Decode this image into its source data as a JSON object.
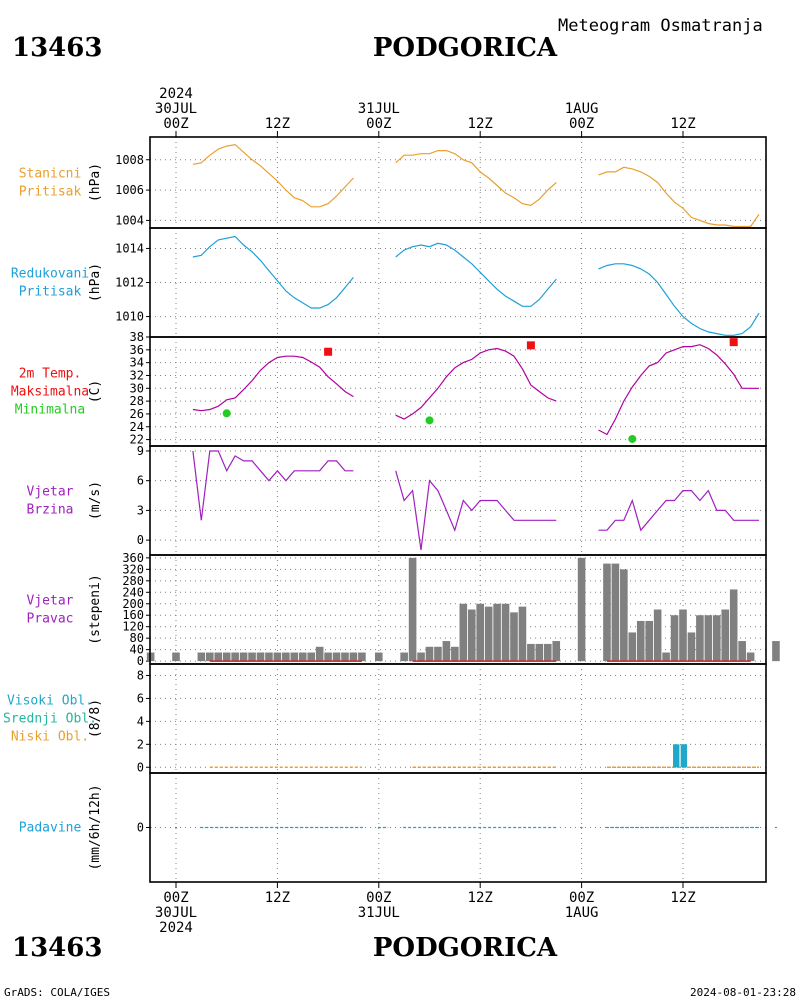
{
  "header": {
    "station_id": "13463",
    "station_name": "PODGORICA",
    "subtitle": "Meteogram Osmatranja",
    "credit": "GrADS: COLA/IGES",
    "timestamp": "2024-08-01-23:28"
  },
  "time_axis": {
    "ticks_top": [
      {
        "hour": 0,
        "lines": [
          "2024",
          "30JUL",
          "00Z"
        ]
      },
      {
        "hour": 12,
        "lines": [
          "12Z"
        ]
      },
      {
        "hour": 24,
        "lines": [
          "31JUL",
          "00Z"
        ]
      },
      {
        "hour": 36,
        "lines": [
          "12Z"
        ]
      },
      {
        "hour": 48,
        "lines": [
          "1AUG",
          "00Z"
        ]
      },
      {
        "hour": 60,
        "lines": [
          "12Z"
        ]
      }
    ],
    "ticks_bottom": [
      {
        "hour": 0,
        "lines": [
          "00Z",
          "30JUL",
          "2024"
        ]
      },
      {
        "hour": 12,
        "lines": [
          "12Z"
        ]
      },
      {
        "hour": 24,
        "lines": [
          "00Z",
          "31JUL"
        ]
      },
      {
        "hour": 36,
        "lines": [
          "12Z"
        ]
      },
      {
        "hour": 48,
        "lines": [
          "00Z",
          "1AUG"
        ]
      },
      {
        "hour": 60,
        "lines": [
          "12Z"
        ]
      }
    ]
  },
  "colors": {
    "station_pressure": "#e8a030",
    "reduced_pressure": "#1ea0d8",
    "temperature": "#b000a0",
    "maximum": "#ee1111",
    "minimum": "#22cc22",
    "wind": "#a020c0",
    "direction_bar": "#808080",
    "direction_baseline": "#cc2222",
    "high_cloud": "#20a8c8",
    "mid_cloud": "#20b8a0",
    "low_cloud": "#e8a030",
    "precip": "#1ea0d8",
    "grid": "#808080"
  },
  "chart_data": [
    {
      "type": "line",
      "id": "station-pressure",
      "labels": [
        "Stanicni",
        "Pritisak"
      ],
      "ylabel": "(hPa)",
      "ylim": [
        1003.5,
        1009.5
      ],
      "yticks": [
        1004,
        1006,
        1008
      ],
      "series": [
        {
          "x": [
            2,
            3,
            4,
            5,
            6,
            7,
            8,
            9,
            10,
            11,
            12,
            13,
            14,
            15,
            16,
            17,
            18,
            19,
            20,
            21
          ],
          "values": [
            1007.7,
            1007.8,
            1008.3,
            1008.7,
            1008.9,
            1009.0,
            1008.5,
            1008.0,
            1007.6,
            1007.1,
            1006.6,
            1006.0,
            1005.5,
            1005.3,
            1004.9,
            1004.9,
            1005.1,
            1005.6,
            1006.2,
            1006.8
          ]
        },
        {
          "x": [
            26,
            27,
            28,
            29,
            30,
            31,
            32,
            33,
            34,
            35,
            36,
            37,
            38,
            39,
            40,
            41,
            42,
            43,
            44,
            45
          ],
          "values": [
            1007.8,
            1008.3,
            1008.3,
            1008.4,
            1008.4,
            1008.6,
            1008.6,
            1008.4,
            1008.0,
            1007.8,
            1007.2,
            1006.8,
            1006.3,
            1005.8,
            1005.5,
            1005.1,
            1005.0,
            1005.4,
            1006.0,
            1006.5
          ]
        },
        {
          "x": [
            50,
            51,
            52,
            53,
            54,
            55,
            56,
            57,
            58,
            59,
            60,
            61,
            62,
            63,
            64,
            65,
            66,
            67,
            68,
            69
          ],
          "values": [
            1007.0,
            1007.2,
            1007.2,
            1007.5,
            1007.4,
            1007.2,
            1006.9,
            1006.5,
            1005.8,
            1005.2,
            1004.8,
            1004.2,
            1004.0,
            1003.8,
            1003.7,
            1003.7,
            1003.6,
            1003.6,
            1003.6,
            1004.4
          ]
        }
      ]
    },
    {
      "type": "line",
      "id": "reduced-pressure",
      "labels": [
        "Redukovani",
        "Pritisak"
      ],
      "ylabel": "(hPa)",
      "ylim": [
        1008.8,
        1015.2
      ],
      "yticks": [
        1010,
        1012,
        1014
      ],
      "series": [
        {
          "x": [
            2,
            3,
            4,
            5,
            6,
            7,
            8,
            9,
            10,
            11,
            12,
            13,
            14,
            15,
            16,
            17,
            18,
            19,
            20,
            21
          ],
          "values": [
            1013.5,
            1013.6,
            1014.1,
            1014.5,
            1014.6,
            1014.7,
            1014.2,
            1013.8,
            1013.3,
            1012.7,
            1012.1,
            1011.5,
            1011.1,
            1010.8,
            1010.5,
            1010.5,
            1010.7,
            1011.1,
            1011.7,
            1012.3
          ]
        },
        {
          "x": [
            26,
            27,
            28,
            29,
            30,
            31,
            32,
            33,
            34,
            35,
            36,
            37,
            38,
            39,
            40,
            41,
            42,
            43,
            44,
            45
          ],
          "values": [
            1013.5,
            1013.9,
            1014.1,
            1014.2,
            1014.1,
            1014.3,
            1014.2,
            1013.9,
            1013.5,
            1013.1,
            1012.6,
            1012.1,
            1011.6,
            1011.2,
            1010.9,
            1010.6,
            1010.6,
            1011.0,
            1011.6,
            1012.2
          ]
        },
        {
          "x": [
            50,
            51,
            52,
            53,
            54,
            55,
            56,
            57,
            58,
            59,
            60,
            61,
            62,
            63,
            64,
            65,
            66,
            67,
            68,
            69
          ],
          "values": [
            1012.8,
            1013.0,
            1013.1,
            1013.1,
            1013.0,
            1012.8,
            1012.5,
            1012.0,
            1011.3,
            1010.6,
            1010.0,
            1009.6,
            1009.3,
            1009.1,
            1009.0,
            1008.9,
            1008.9,
            1009.0,
            1009.4,
            1010.2
          ]
        }
      ]
    },
    {
      "type": "line",
      "id": "temperature",
      "labels": [
        "2m Temp.",
        "Maksimalna",
        "Minimalna"
      ],
      "ylabel": "(C)",
      "ylim": [
        21,
        38
      ],
      "yticks": [
        22,
        24,
        26,
        28,
        30,
        32,
        34,
        36,
        38
      ],
      "series": [
        {
          "x": [
            2,
            3,
            4,
            5,
            6,
            7,
            8,
            9,
            10,
            11,
            12,
            13,
            14,
            15,
            16,
            17,
            18,
            19,
            20,
            21
          ],
          "values": [
            26.7,
            26.5,
            26.7,
            27.2,
            28.2,
            28.5,
            29.8,
            31.2,
            32.8,
            34.0,
            34.8,
            35.0,
            35.0,
            34.8,
            34.1,
            33.3,
            31.8,
            30.7,
            29.5,
            28.7
          ]
        },
        {
          "x": [
            26,
            27,
            28,
            29,
            30,
            31,
            32,
            33,
            34,
            35,
            36,
            37,
            38,
            39,
            40,
            41,
            42,
            43,
            44,
            45
          ],
          "values": [
            25.8,
            25.2,
            26.0,
            27.0,
            28.5,
            30.0,
            31.8,
            33.2,
            34.0,
            34.5,
            35.5,
            36.0,
            36.2,
            35.8,
            35.0,
            33.0,
            30.5,
            29.5,
            28.5,
            28.0
          ]
        },
        {
          "x": [
            50,
            51,
            52,
            53,
            54,
            55,
            56,
            57,
            58,
            59,
            60,
            61,
            62,
            63,
            64,
            65,
            66,
            67,
            68,
            69
          ],
          "values": [
            23.5,
            22.8,
            25.2,
            28.0,
            30.2,
            32.0,
            33.5,
            34.0,
            35.5,
            36.0,
            36.5,
            36.5,
            36.8,
            36.2,
            35.2,
            33.8,
            32.2,
            30.0,
            30.0,
            30.0
          ]
        }
      ],
      "maximum": {
        "x": [
          18,
          42,
          66
        ],
        "values": [
          35.7,
          36.7,
          37.2
        ]
      },
      "minimum": {
        "x": [
          6,
          30,
          54
        ],
        "values": [
          26.1,
          25.0,
          22.1
        ]
      }
    },
    {
      "type": "line",
      "id": "wind-speed",
      "labels": [
        "Vjetar",
        "Brzina"
      ],
      "ylabel": "(m/s)",
      "ylim": [
        -1.5,
        9.5
      ],
      "yticks": [
        0,
        3,
        6,
        9
      ],
      "series": [
        {
          "x": [
            2,
            3,
            4,
            5,
            6,
            7,
            8,
            9,
            10,
            11,
            12,
            13,
            14,
            15,
            16,
            17,
            18,
            19,
            20,
            21
          ],
          "values": [
            9,
            2,
            9,
            9,
            7,
            8.5,
            8,
            8,
            7,
            6,
            7,
            6,
            7,
            7,
            7,
            7,
            8,
            8,
            7,
            7
          ]
        },
        {
          "x": [
            26,
            27,
            28,
            29,
            30,
            31,
            32,
            33,
            34,
            35,
            36,
            37,
            38,
            39,
            40,
            41,
            42,
            43,
            44,
            45
          ],
          "values": [
            7,
            4,
            5,
            -1,
            6,
            5,
            3,
            1,
            4,
            3,
            4,
            4,
            4,
            3,
            2,
            2,
            2,
            2,
            2,
            2
          ]
        },
        {
          "x": [
            50,
            51,
            52,
            53,
            54,
            55,
            56,
            57,
            58,
            59,
            60,
            61,
            62,
            63,
            64,
            65,
            66,
            67,
            68,
            69
          ],
          "values": [
            1,
            1,
            2,
            2,
            4,
            1,
            2,
            3,
            4,
            4,
            5,
            5,
            4,
            5,
            3,
            3,
            2,
            2,
            2,
            2
          ]
        }
      ]
    },
    {
      "type": "bar",
      "id": "wind-direction",
      "labels": [
        "Vjetar",
        "Pravac"
      ],
      "ylabel": "(stepeni)",
      "ylim": [
        -10,
        370
      ],
      "yticks": [
        0,
        40,
        80,
        120,
        160,
        200,
        240,
        280,
        320,
        360
      ],
      "x": [
        -3,
        0,
        3,
        4,
        5,
        6,
        7,
        8,
        9,
        10,
        11,
        12,
        13,
        14,
        15,
        16,
        17,
        18,
        19,
        20,
        21,
        22,
        24,
        27,
        28,
        29,
        30,
        31,
        32,
        33,
        34,
        35,
        36,
        37,
        38,
        39,
        40,
        41,
        42,
        43,
        44,
        45,
        48,
        51,
        52,
        53,
        54,
        55,
        56,
        57,
        58,
        59,
        60,
        61,
        62,
        63,
        64,
        65,
        66,
        67,
        68,
        71
      ],
      "values": [
        30,
        30,
        30,
        30,
        30,
        30,
        30,
        30,
        30,
        30,
        30,
        30,
        30,
        30,
        30,
        30,
        50,
        30,
        30,
        30,
        30,
        30,
        30,
        30,
        360,
        30,
        50,
        50,
        70,
        50,
        200,
        180,
        200,
        190,
        200,
        200,
        170,
        190,
        60,
        60,
        60,
        70,
        360,
        340,
        340,
        320,
        100,
        140,
        140,
        180,
        30,
        160,
        180,
        100,
        160,
        160,
        160,
        180,
        250,
        70,
        30,
        70
      ]
    },
    {
      "type": "bar",
      "id": "clouds",
      "labels": [
        "Visoki Obl.",
        "Srednji Obl.",
        "Niski Obl."
      ],
      "ylabel": "(8/8)",
      "ylim": [
        -0.5,
        9
      ],
      "yticks": [
        0,
        2,
        4,
        6,
        8
      ],
      "x": [
        59.2,
        60.1
      ],
      "values": [
        2,
        2
      ]
    },
    {
      "type": "bar",
      "id": "precipitation",
      "labels": [
        "Padavine"
      ],
      "ylabel": "(mm/6h/12h)",
      "ylim": [
        -3,
        3
      ],
      "yticks": [
        0
      ],
      "x": [],
      "values": []
    }
  ]
}
